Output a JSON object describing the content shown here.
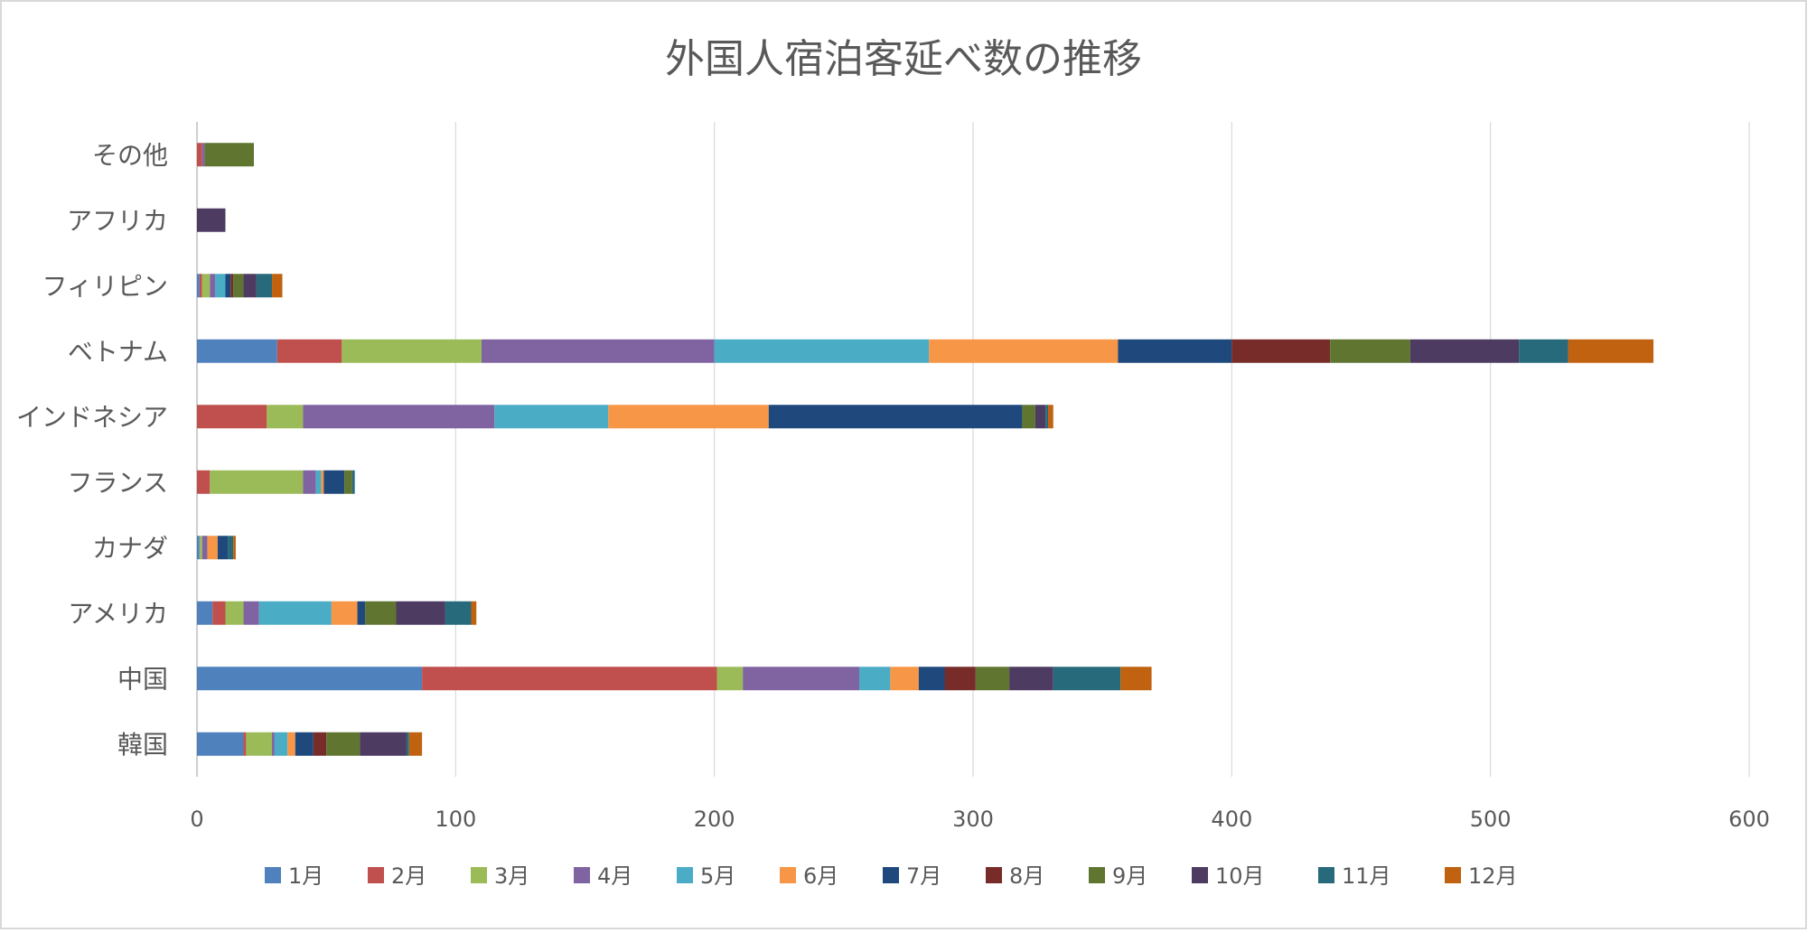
{
  "chart_data": {
    "type": "bar",
    "orientation": "horizontal",
    "stacked": true,
    "title": "外国人宿泊客延べ数の推移",
    "categories": [
      "韓国",
      "中国",
      "アメリカ",
      "カナダ",
      "フランス",
      "インドネシア",
      "ベトナム",
      "フィリピン",
      "アフリカ",
      "その他"
    ],
    "xlim": [
      0,
      600
    ],
    "xticks": [
      0,
      100,
      200,
      300,
      400,
      500,
      600
    ],
    "grid": true,
    "legend_position": "bottom",
    "series": [
      {
        "name": "1月",
        "color": "#4F81BD",
        "values": [
          18,
          87,
          6,
          1,
          0,
          0,
          31,
          1,
          0,
          0
        ]
      },
      {
        "name": "2月",
        "color": "#C0504D",
        "values": [
          1,
          114,
          5,
          0,
          5,
          27,
          25,
          1,
          0,
          2
        ]
      },
      {
        "name": "3月",
        "color": "#9BBB59",
        "values": [
          10,
          10,
          7,
          1,
          36,
          14,
          54,
          3,
          0,
          0
        ]
      },
      {
        "name": "4月",
        "color": "#8064A2",
        "values": [
          1,
          45,
          6,
          2,
          5,
          74,
          90,
          2,
          0,
          1
        ]
      },
      {
        "name": "5月",
        "color": "#4BACC6",
        "values": [
          5,
          12,
          28,
          0,
          2,
          44,
          83,
          4,
          0,
          0
        ]
      },
      {
        "name": "6月",
        "color": "#F79646",
        "values": [
          3,
          11,
          10,
          4,
          1,
          62,
          73,
          0,
          0,
          0
        ]
      },
      {
        "name": "7月",
        "color": "#1F497D",
        "values": [
          7,
          10,
          3,
          4,
          8,
          98,
          44,
          2,
          0,
          0
        ]
      },
      {
        "name": "8月",
        "color": "#772C2A",
        "values": [
          5,
          12,
          0,
          0,
          0,
          0,
          38,
          1,
          0,
          0
        ]
      },
      {
        "name": "9月",
        "color": "#5F7530",
        "values": [
          13,
          13,
          12,
          0,
          3,
          5,
          31,
          4,
          0,
          19
        ]
      },
      {
        "name": "10月",
        "color": "#4D3B62",
        "values": [
          18,
          17,
          19,
          0,
          0,
          4,
          42,
          5,
          11,
          0
        ]
      },
      {
        "name": "11月",
        "color": "#276A7C",
        "values": [
          1,
          26,
          10,
          2,
          1,
          1,
          19,
          6,
          0,
          0
        ]
      },
      {
        "name": "12月",
        "color": "#C0620F",
        "values": [
          5,
          12,
          2,
          1,
          0,
          2,
          33,
          4,
          0,
          0
        ]
      }
    ]
  }
}
